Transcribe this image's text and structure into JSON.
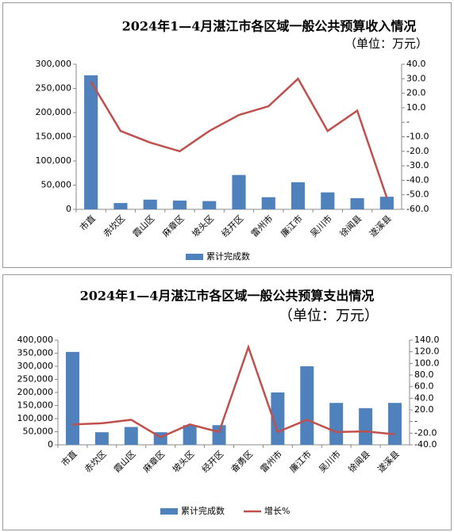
{
  "chart_data": [
    {
      "type": "bar",
      "title": "2024年1—4月湛江市各区域一般公共预算收入情况",
      "subtitle": "（单位：万元）",
      "categories": [
        "市直",
        "赤坎区",
        "霞山区",
        "麻章区",
        "坡头区",
        "经开区",
        "雷州市",
        "廉江市",
        "吴川市",
        "徐闻县",
        "遂溪县"
      ],
      "series": [
        {
          "name": "累计完成数",
          "color": "#4f81bd",
          "values": [
            277000,
            13000,
            20000,
            18000,
            17000,
            71000,
            25000,
            56000,
            35000,
            23000,
            26000
          ]
        },
        {
          "type": "line",
          "axis": "y2",
          "color": "#c0504d",
          "values": [
            28,
            -6,
            -14,
            -20,
            -6,
            5,
            11,
            30,
            -6,
            8,
            -52
          ]
        }
      ],
      "ylim": [
        0,
        300000
      ],
      "yticks": [
        0,
        {
          "value": 50000,
          "label": "50,000"
        },
        {
          "value": 100000,
          "label": "100,000"
        },
        {
          "value": 150000,
          "label": "150,000"
        },
        {
          "value": 200000,
          "label": "200,000"
        },
        {
          "value": 250000,
          "label": "250,000"
        },
        {
          "value": 300000,
          "label": "300,000"
        }
      ],
      "y2lim": [
        -60,
        40
      ],
      "y2ticks": [
        {
          "value": -60,
          "label": "-60.0"
        },
        {
          "value": -50,
          "label": "-50.0"
        },
        {
          "value": -40,
          "label": "-40.0"
        },
        {
          "value": -30,
          "label": "-30.0"
        },
        {
          "value": -20,
          "label": "-20.0"
        },
        {
          "value": -10,
          "label": "-10.0"
        },
        {
          "value": 0,
          "label": "-"
        },
        {
          "value": 10,
          "label": "10.0"
        },
        {
          "value": 20,
          "label": "20.0"
        },
        {
          "value": 30,
          "label": "30.0"
        },
        {
          "value": 40,
          "label": "40.0"
        }
      ]
    },
    {
      "type": "bar",
      "title": "2024年1—4月湛江市各区域一般公共预算支出情况",
      "subtitle": "（单位：万元）",
      "categories": [
        "市直",
        "赤坎区",
        "霞山区",
        "麻章区",
        "坡头区",
        "经开区",
        "奋勇区",
        "雷州市",
        "廉江市",
        "吴川市",
        "徐闻县",
        "遂溪县"
      ],
      "series": [
        {
          "name": "累计完成数",
          "color": "#4f81bd",
          "values": [
            355000,
            48000,
            68000,
            48000,
            75000,
            75000,
            null,
            200000,
            300000,
            160000,
            140000,
            160000
          ]
        },
        {
          "name": "增长%",
          "type": "line",
          "axis": "y2",
          "color": "#c0504d",
          "values": [
            -5,
            -3,
            3,
            -27,
            -5,
            -18,
            128,
            -18,
            3,
            -18,
            -17,
            -22
          ]
        }
      ],
      "ylim": [
        0,
        400000
      ],
      "yticks": [
        0,
        {
          "value": 50000,
          "label": "50,000"
        },
        {
          "value": 100000,
          "label": "100,000"
        },
        {
          "value": 150000,
          "label": "150,000"
        },
        {
          "value": 200000,
          "label": "200,000"
        },
        {
          "value": 250000,
          "label": "250,000"
        },
        {
          "value": 300000,
          "label": "300,000"
        },
        {
          "value": 350000,
          "label": "350,000"
        },
        {
          "value": 400000,
          "label": "400,000"
        }
      ],
      "y2lim": [
        -40,
        140
      ],
      "y2ticks": [
        {
          "value": -40,
          "label": "-40.0"
        },
        {
          "value": -20,
          "label": "-20.0"
        },
        {
          "value": 0,
          "label": "-"
        },
        {
          "value": 20,
          "label": "20.0"
        },
        {
          "value": 40,
          "label": "40.0"
        },
        {
          "value": 60,
          "label": "60.0"
        },
        {
          "value": 80,
          "label": "80.0"
        },
        {
          "value": 100,
          "label": "100.0"
        },
        {
          "value": 120,
          "label": "120.0"
        },
        {
          "value": 140,
          "label": "140.0"
        }
      ]
    }
  ]
}
